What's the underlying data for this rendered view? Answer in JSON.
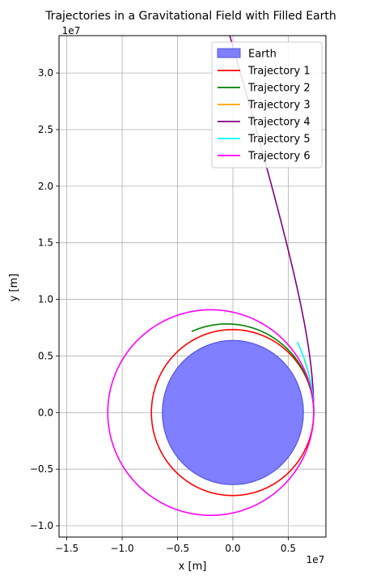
{
  "chart_data": {
    "type": "line",
    "title": "Trajectories in a Gravitational Field with Filled Earth",
    "xlabel": "x [m]",
    "ylabel": "y [m]",
    "x_offset_label": "1e7",
    "y_offset_label": "1e7",
    "xlim": [
      -15700000.0,
      8400000.0
    ],
    "ylim": [
      -11000000.0,
      33300000.0
    ],
    "x_ticks": [
      -15000000.0,
      -10000000.0,
      -5000000.0,
      0,
      5000000.0
    ],
    "x_tick_labels": [
      "−1.5",
      "−1.0",
      "−0.5",
      "0.0",
      "0.5"
    ],
    "y_ticks": [
      -10000000.0,
      -5000000.0,
      0,
      5000000.0,
      10000000.0,
      15000000.0,
      20000000.0,
      25000000.0,
      30000000.0
    ],
    "y_tick_labels": [
      "−1.0",
      "−0.5",
      "0.0",
      "0.5",
      "1.0",
      "1.5",
      "2.0",
      "2.5",
      "3.0"
    ],
    "grid": true,
    "legend_position": "top-right",
    "earth": {
      "name": "Earth",
      "center": [
        0,
        0
      ],
      "radius": 6371000.0,
      "color": "#7f7fff",
      "edge_color": "#5555dd"
    },
    "series": [
      {
        "name": "Trajectory 1",
        "color": "#ff0000",
        "kind": "ellipse",
        "a": 7300000.0,
        "e": 0.004,
        "periapsis_x": 7300000.0,
        "theta_range": [
          0,
          6.2832
        ],
        "rotations": 1.0
      },
      {
        "name": "Trajectory 2",
        "color": "#008000",
        "kind": "ellipse",
        "a": 6850000.0,
        "e": 0.07,
        "periapsis_x": 7300000.0,
        "theta_range": [
          0,
          2.05
        ]
      },
      {
        "name": "Trajectory 3",
        "color": "#ffa500",
        "kind": "ellipse",
        "a": 4200000.0,
        "e": 0.74,
        "periapsis_x": 7300000.0,
        "theta_range": [
          0,
          0.62
        ]
      },
      {
        "name": "Trajectory 4",
        "color": "#800080",
        "kind": "hyperbola",
        "a": -3000000.0,
        "e": 3.43,
        "periapsis_x": 7300000.0,
        "theta_range": [
          0,
          1.72
        ]
      },
      {
        "name": "Trajectory 5",
        "color": "#00ffff",
        "kind": "ellipse",
        "a": 4000000.0,
        "e": 0.825,
        "periapsis_x": 7300000.0,
        "theta_range": [
          0,
          0.82
        ]
      },
      {
        "name": "Trajectory 6",
        "color": "#ff00ff",
        "kind": "ellipse",
        "a": 9300000.0,
        "e": 0.215,
        "periapsis_x": 7300000.0,
        "theta_range": [
          0,
          6.2832
        ]
      }
    ]
  }
}
